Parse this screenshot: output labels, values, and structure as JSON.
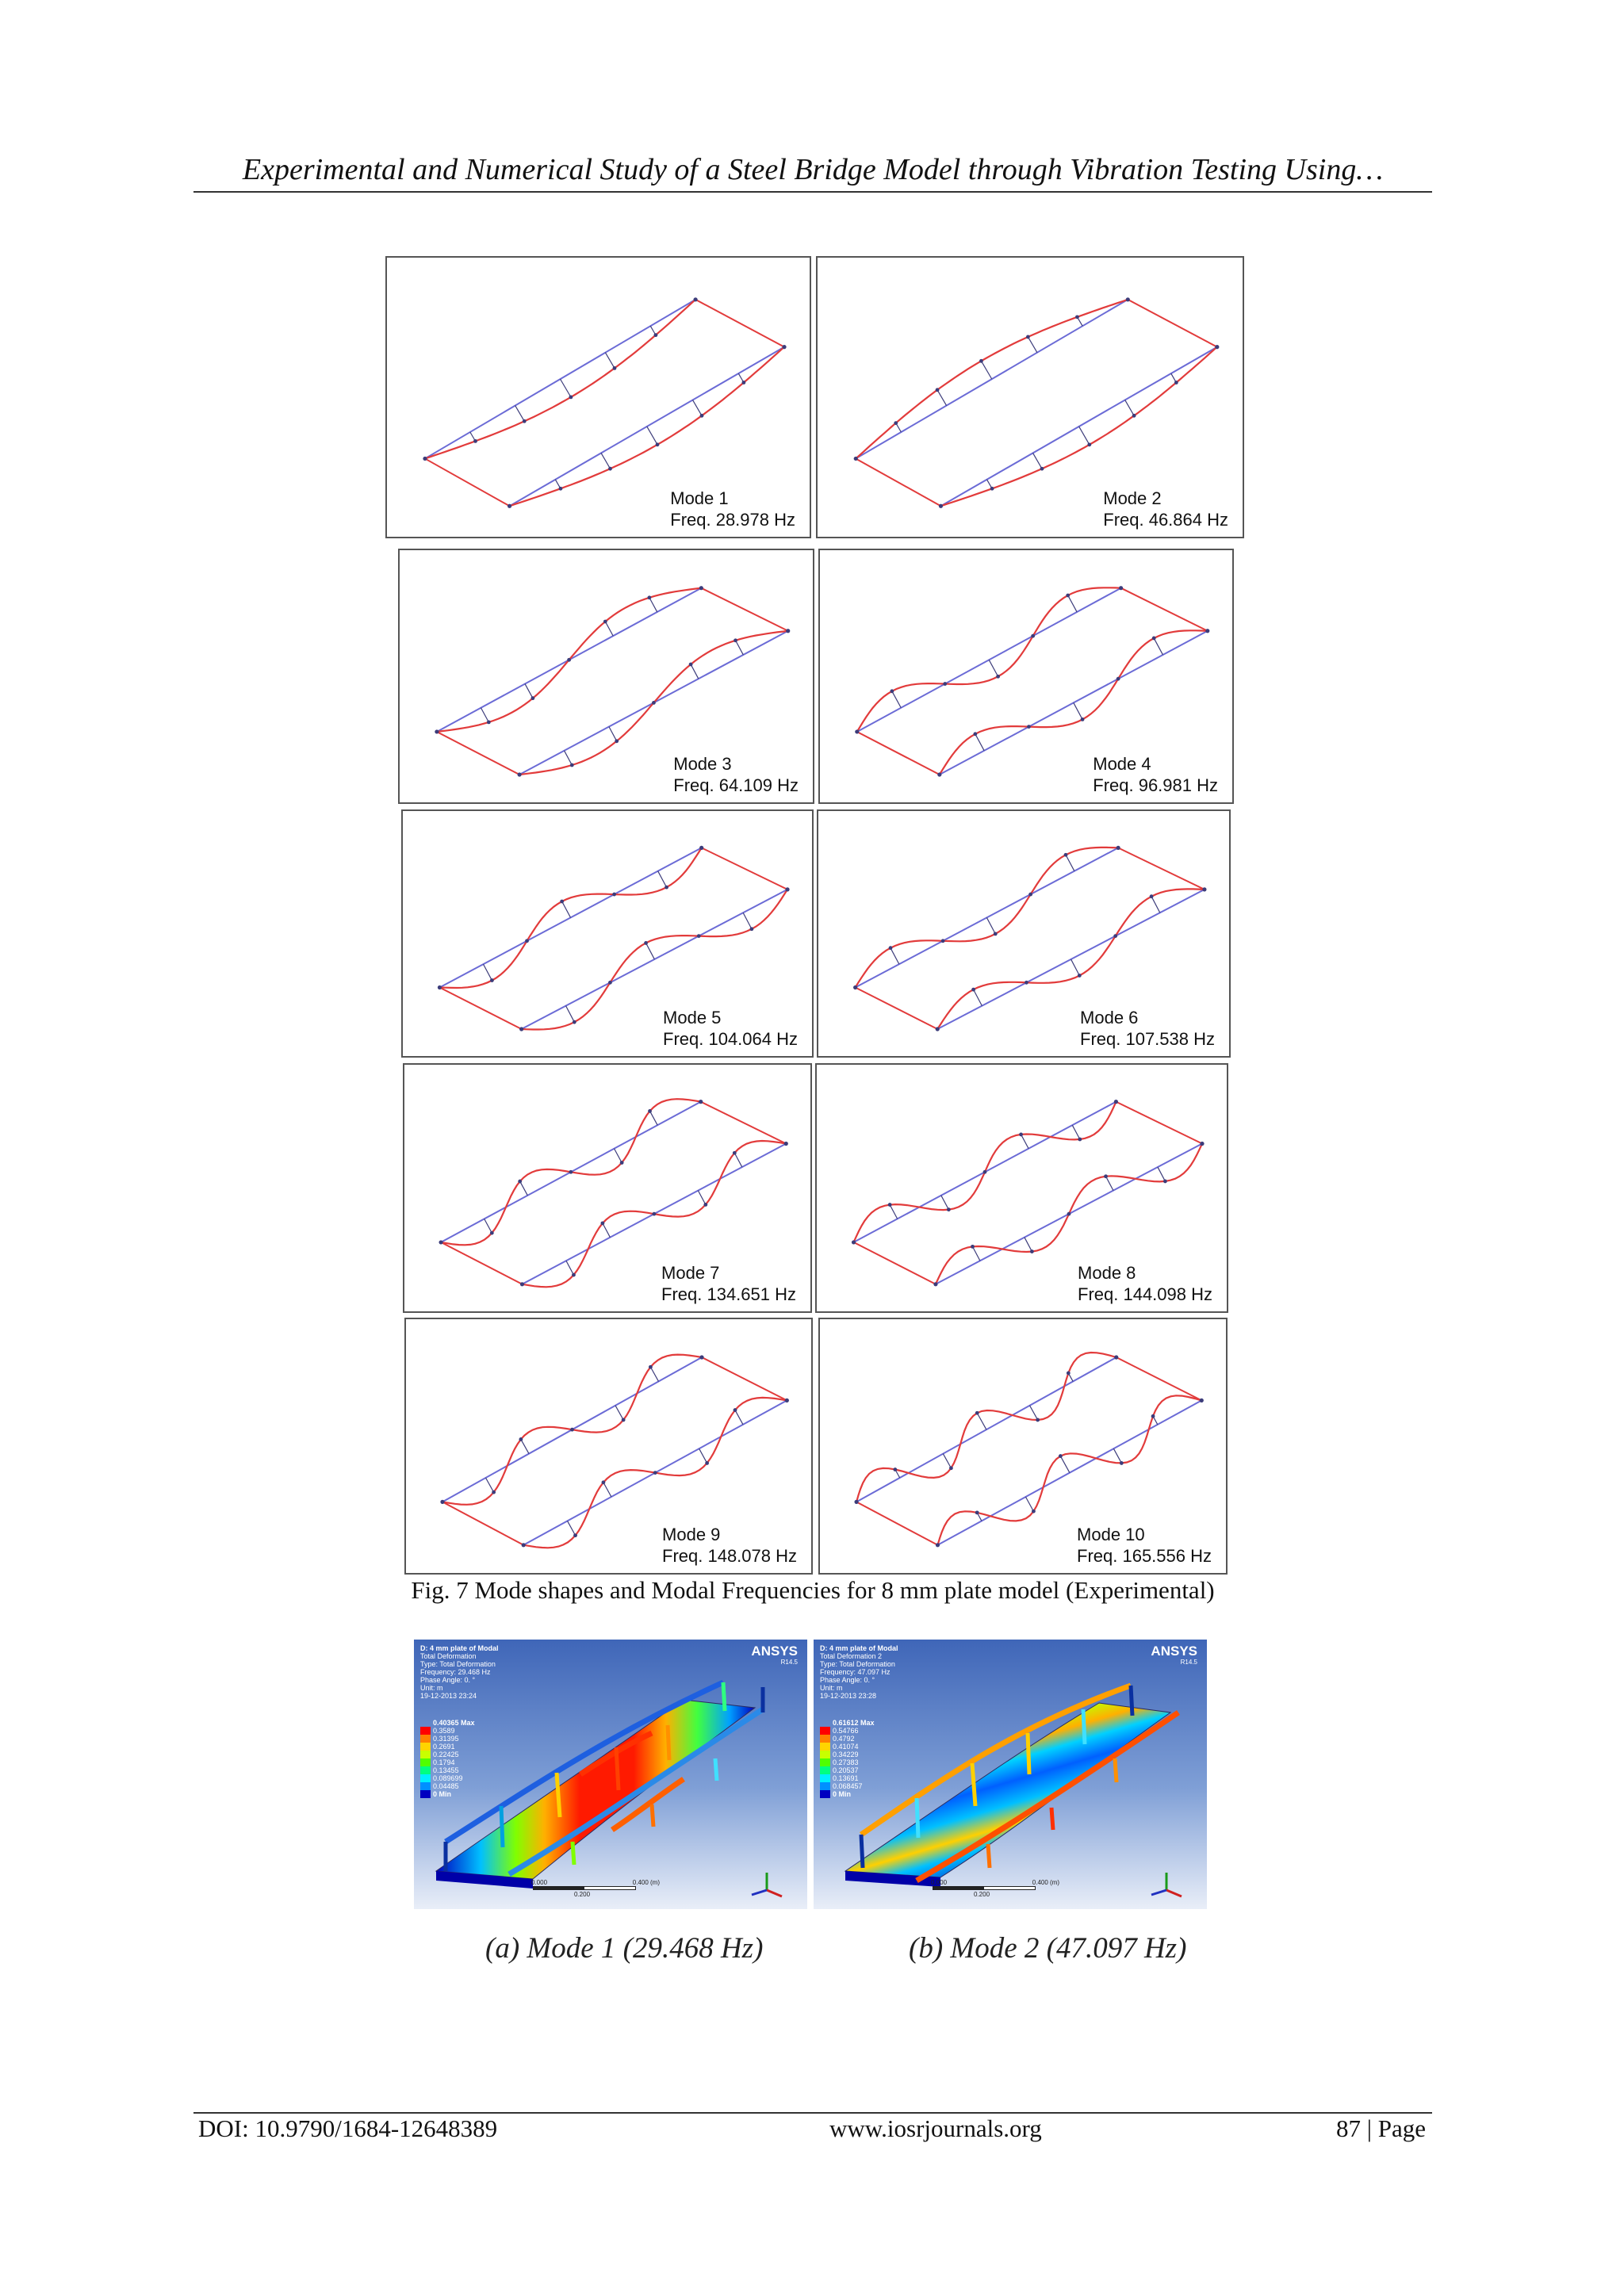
{
  "header": {
    "running_title": "Experimental and Numerical Study of a Steel Bridge Model through Vibration Testing Using…"
  },
  "figure7": {
    "caption": "Fig. 7 Mode shapes and Modal Frequencies for 8 mm plate model (Experimental)",
    "modes": [
      {
        "mode": "Mode 1",
        "freq": "Freq. 28.978 Hz",
        "frequency_hz": 28.978,
        "half_waves": 1
      },
      {
        "mode": "Mode 2",
        "freq": "Freq. 46.864 Hz",
        "frequency_hz": 46.864,
        "half_waves": 1
      },
      {
        "mode": "Mode 3",
        "freq": "Freq. 64.109 Hz",
        "frequency_hz": 64.109,
        "half_waves": 2
      },
      {
        "mode": "Mode 4",
        "freq": "Freq. 96.981 Hz",
        "frequency_hz": 96.981,
        "half_waves": 3
      },
      {
        "mode": "Mode 5",
        "freq": "Freq. 104.064 Hz",
        "frequency_hz": 104.064,
        "half_waves": 3
      },
      {
        "mode": "Mode 6",
        "freq": "Freq. 107.538 Hz",
        "frequency_hz": 107.538,
        "half_waves": 3
      },
      {
        "mode": "Mode 7",
        "freq": "Freq. 134.651 Hz",
        "frequency_hz": 134.651,
        "half_waves": 4
      },
      {
        "mode": "Mode 8",
        "freq": "Freq. 144.098 Hz",
        "frequency_hz": 144.098,
        "half_waves": 4
      },
      {
        "mode": "Mode 9",
        "freq": "Freq. 148.078 Hz",
        "frequency_hz": 148.078,
        "half_waves": 4
      },
      {
        "mode": "Mode 10",
        "freq": "Freq. 165.556 Hz",
        "frequency_hz": 165.556,
        "half_waves": 5
      }
    ]
  },
  "figure8": {
    "panels": [
      {
        "info": [
          "D: 4 mm plate of Modal",
          "Total Deformation",
          "Type: Total Deformation",
          "Frequency: 29.468 Hz",
          "Phase Angle: 0. °",
          "Unit: m",
          "19-12-2013 23:24"
        ],
        "legend_max": "0.40365 Max",
        "legend_values": [
          "0.3589",
          "0.31395",
          "0.2691",
          "0.22425",
          "0.1794",
          "0.13455",
          "0.089699",
          "0.04485"
        ],
        "legend_min": "0 Min",
        "caption": "(a) Mode 1 (29.468 Hz)"
      },
      {
        "info": [
          "D: 4 mm plate of Modal",
          "Total Deformation 2",
          "Type: Total Deformation",
          "Frequency: 47.097 Hz",
          "Phase Angle: 0. °",
          "Unit: m",
          "19-12-2013 23:28"
        ],
        "legend_max": "0.61612 Max",
        "legend_values": [
          "0.54766",
          "0.4792",
          "0.41074",
          "0.34229",
          "0.27383",
          "0.20537",
          "0.13691",
          "0.068457"
        ],
        "legend_min": "0 Min",
        "caption": "(b) Mode 2 (47.097 Hz)"
      }
    ],
    "brand": "ANSYS",
    "brand_version": "R14.5",
    "scale": {
      "left": "0.000",
      "mid": "0.200",
      "right": "0.400 (m)"
    },
    "legend_colors": [
      "#ff0000",
      "#ff8000",
      "#ffd400",
      "#c8ff00",
      "#50ff00",
      "#00ff80",
      "#00f0ff",
      "#0090ff",
      "#0020ff",
      "#0000c0"
    ]
  },
  "footer": {
    "doi": "DOI: 10.9790/1684-12648389",
    "website": "www.iosrjournals.org",
    "page": "87 | Page"
  },
  "colors": {
    "deformed": "#e23b3b",
    "undeformed": "#6b6bd6",
    "node": "#3c3c7a"
  }
}
